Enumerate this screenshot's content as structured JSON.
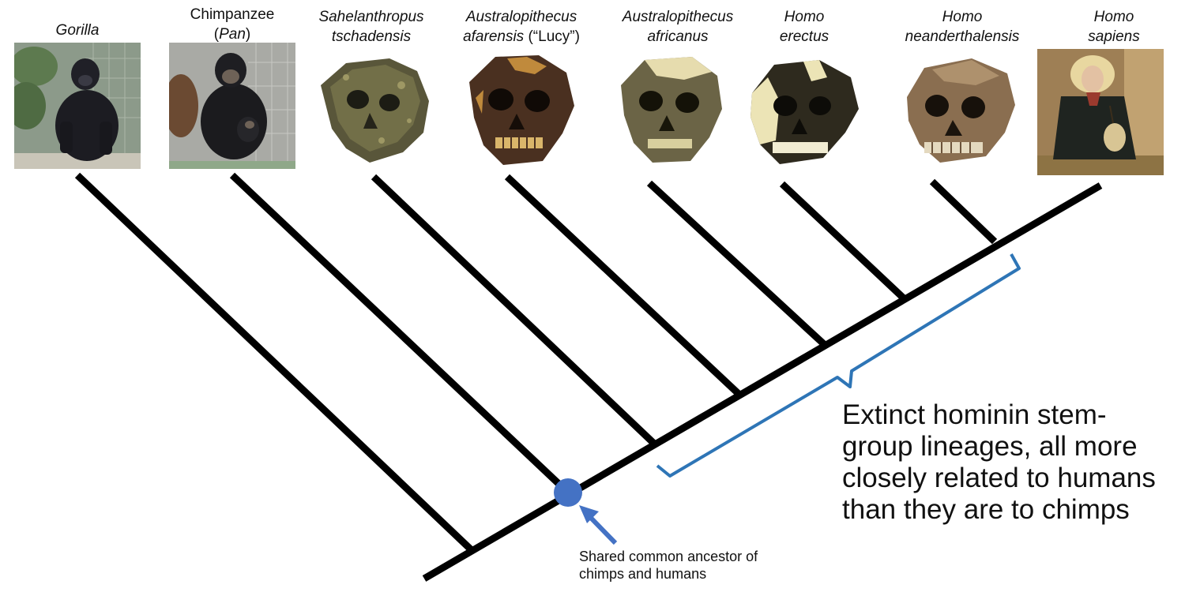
{
  "taxa": [
    {
      "id": "gorilla",
      "line1": "Gorilla",
      "line1_italic": true,
      "line2": "",
      "line2_pre": "",
      "line2_italic": "",
      "line2_post": ""
    },
    {
      "id": "chimp",
      "line1": "Chimpanzee",
      "line1_italic": false,
      "line2_pre": "(",
      "line2_italic": "Pan",
      "line2_post": ")"
    },
    {
      "id": "sahelanthropus",
      "line1": "Sahelanthropus",
      "line1_italic": true,
      "line2_pre": "",
      "line2_italic": "tschadensis",
      "line2_post": ""
    },
    {
      "id": "afarensis",
      "line1": "Australopithecus",
      "line1_italic": true,
      "line2_pre": "",
      "line2_italic": "afarensis",
      "line2_post": " (“Lucy”)"
    },
    {
      "id": "africanus",
      "line1": "Australopithecus",
      "line1_italic": true,
      "line2_pre": "",
      "line2_italic": "africanus",
      "line2_post": ""
    },
    {
      "id": "erectus",
      "line1": "Homo",
      "line1_italic": true,
      "line2_pre": "",
      "line2_italic": "erectus",
      "line2_post": ""
    },
    {
      "id": "neanderthalensis",
      "line1": "Homo",
      "line1_italic": true,
      "line2_pre": "",
      "line2_italic": "neanderthalensis",
      "line2_post": ""
    },
    {
      "id": "sapiens",
      "line1": "Homo",
      "line1_italic": true,
      "line2_pre": "",
      "line2_italic": "sapiens",
      "line2_post": ""
    }
  ],
  "bracket_note": {
    "lines": [
      "Extinct hominin stem-",
      "group lineages, all more",
      "closely related to humans",
      "than they are to chimps"
    ]
  },
  "ancestor_note": {
    "lines": [
      "Shared common ancestor of",
      "chimps and humans"
    ]
  },
  "colors": {
    "branch": "#000000",
    "ancestor_node": "#4472c4",
    "arrow": "#4472c4",
    "bracket": "#2e75b6"
  },
  "icons": {
    "ancestor_node": "circle-node-icon",
    "arrow": "arrow-up-left-icon"
  }
}
